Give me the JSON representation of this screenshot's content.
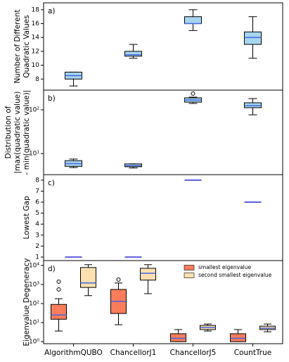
{
  "chart_data": [
    {
      "type": "box",
      "panel_label": "a)",
      "ylabel": [
        "Number of Different",
        "Quadratic Values"
      ],
      "yscale": "linear",
      "ylim": [
        6.4,
        19.0
      ],
      "yticks": [
        8,
        10,
        12,
        14,
        16,
        18
      ],
      "series": [
        {
          "color": "#a7d5ee",
          "median_color": "#4466dd",
          "stats": [
            [
              7,
              8,
              8.5,
              9,
              9
            ],
            [
              11,
              11.3,
              11.5,
              12,
              13
            ],
            [
              15,
              16,
              16,
              17,
              18
            ],
            [
              11,
              13,
              14,
              14.8,
              17
            ]
          ],
          "outliers": [
            [],
            [],
            [],
            []
          ]
        }
      ]
    },
    {
      "type": "box",
      "panel_label": "b)",
      "ylabel": [
        "Distribution of",
        "|max(quadratic value)",
        "- min(quadratic value)|"
      ],
      "yscale": "log",
      "ylim": [
        3.3,
        282
      ],
      "yticks": [
        {
          "value": 10,
          "label": "10¹"
        },
        {
          "value": 100,
          "label": "10²"
        }
      ],
      "series": [
        {
          "color": "#a7d5ee",
          "median_color": "#4466dd",
          "stats": [
            [
              4.8,
              5.1,
              5.9,
              6.9,
              7.5
            ],
            [
              4.7,
              5.0,
              5.3,
              5.8,
              5.8
            ],
            [
              140,
              150,
              168,
              188,
              195
            ],
            [
              77,
              112,
              125,
              145,
              181
            ]
          ],
          "outliers": [
            [],
            [],
            [
              235
            ],
            []
          ]
        }
      ]
    },
    {
      "type": "box",
      "panel_label": "c)",
      "ylabel": [
        "Lowest Gap"
      ],
      "yscale": "linear",
      "ylim": [
        0.68,
        8.5
      ],
      "yticks": [
        1,
        2,
        3,
        4,
        5,
        6,
        7,
        8
      ],
      "series": [
        {
          "color": "#a7d5ee",
          "median_color": "#2b2bd1",
          "stats": [
            [
              1,
              1,
              1,
              1,
              1
            ],
            [
              1,
              1,
              1,
              1,
              1
            ],
            [
              8,
              8,
              8,
              8,
              8
            ],
            [
              6,
              6,
              6,
              6,
              6
            ]
          ],
          "outliers": [
            [],
            [],
            [],
            []
          ]
        }
      ]
    },
    {
      "type": "box",
      "panel_label": "d)",
      "ylabel": [
        "Eigenvalue Degeneracy"
      ],
      "yscale": "log",
      "ylim": [
        0.78,
        18000
      ],
      "yticks": [
        {
          "value": 1,
          "label": "10⁰"
        },
        {
          "value": 10,
          "label": "10¹"
        },
        {
          "value": 100,
          "label": "10²"
        },
        {
          "value": 1000,
          "label": "10³"
        },
        {
          "value": 10000,
          "label": "10⁴"
        }
      ],
      "categories": [
        "AlgorithmQUBO",
        "ChancellorJ1",
        "ChancellorJ5",
        "CountTrue"
      ],
      "legend": "upper right",
      "series": [
        {
          "name": "smallest eigenvalue",
          "color": "#fb7d5b",
          "median_color": "#4466dd",
          "stats": [
            [
              3.6,
              15,
              25,
              90,
              180
            ],
            [
              7.7,
              30,
              130,
              550,
              1200
            ],
            [
              1,
              1,
              1.5,
              2.6,
              4.3
            ],
            [
              1,
              1,
              1.5,
              2.6,
              4.3
            ]
          ],
          "outliers": [
            [
              550,
              1400
            ],
            [
              1800
            ],
            [],
            []
          ]
        },
        {
          "name": "second smallest eigenvalue",
          "color": "#fde0b0",
          "median_color": "#4466dd",
          "stats": [
            [
              260,
              700,
              1200,
              7800,
              11000
            ],
            [
              330,
              1700,
              3900,
              7100,
              11000
            ],
            [
              3.6,
              4.3,
              5.5,
              7.1,
              8.4
            ],
            [
              3.3,
              4.3,
              5.1,
              6.5,
              8.4
            ]
          ],
          "outliers": [
            [],
            [],
            [],
            []
          ]
        }
      ]
    }
  ]
}
